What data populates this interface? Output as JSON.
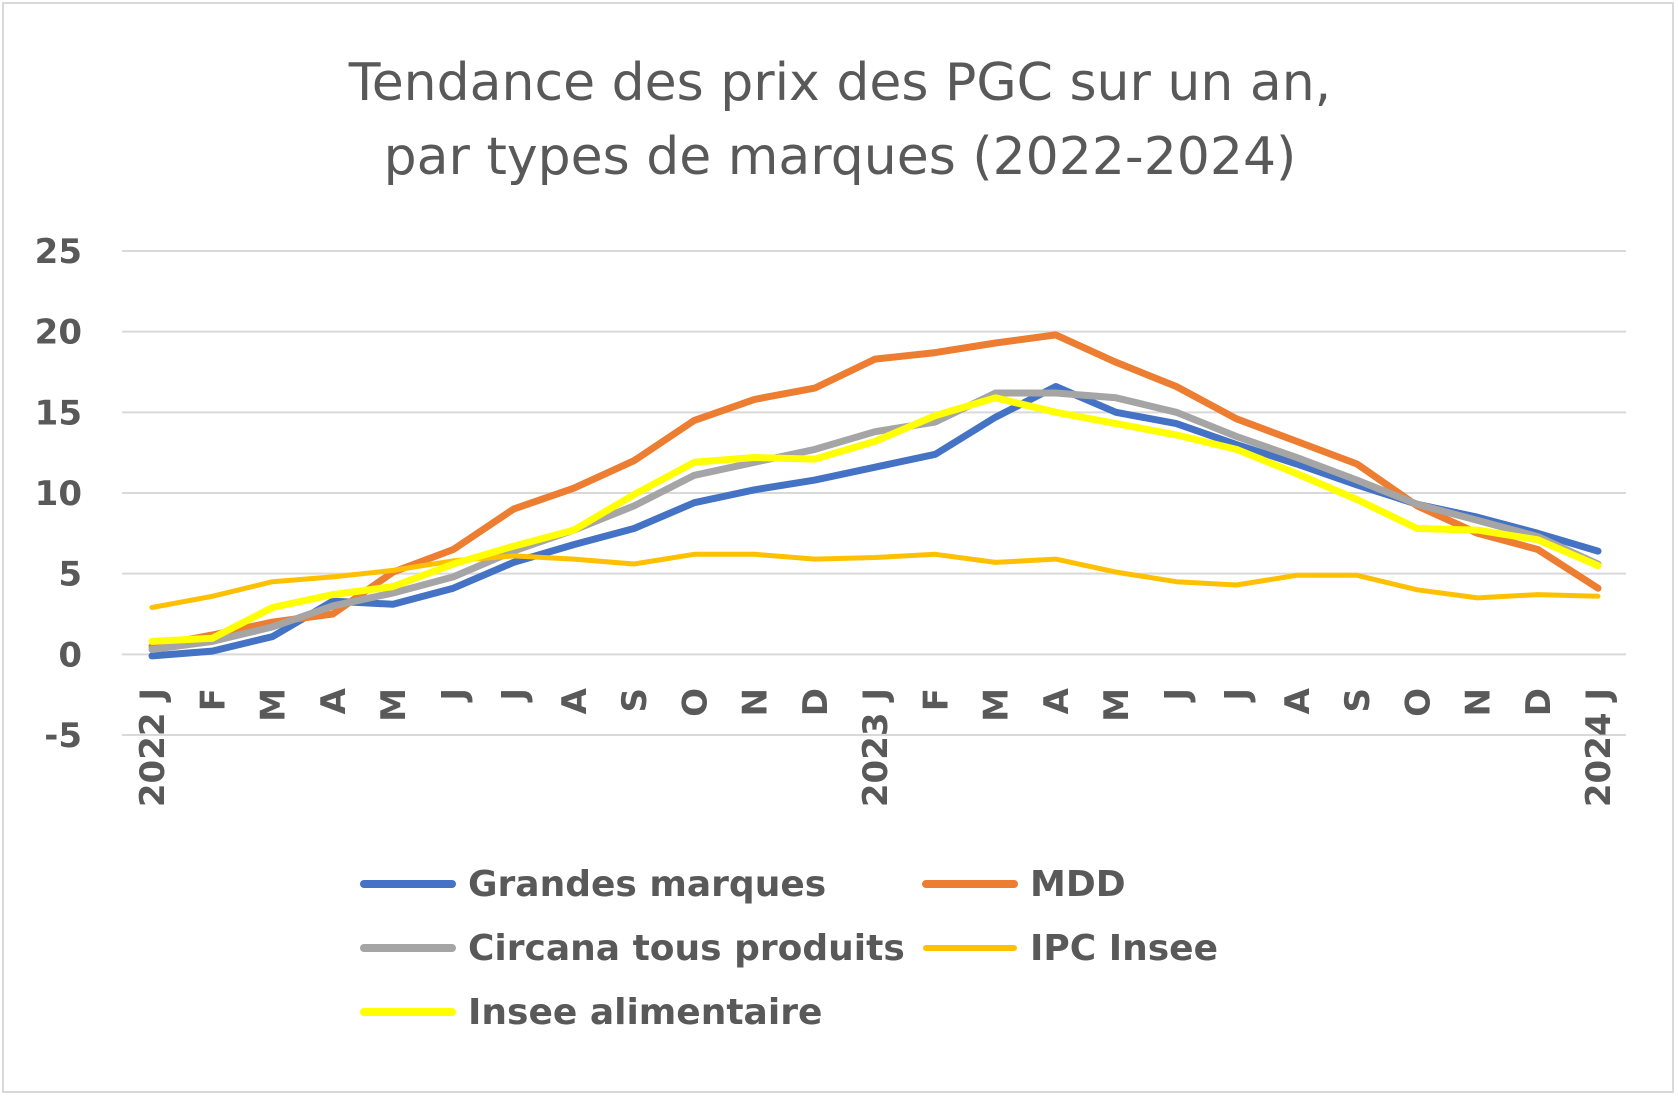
{
  "chart_data": {
    "type": "line",
    "title": "Tendance des prix des PGC sur un an,",
    "subtitle": "par types de marques (2022-2024)",
    "xlabel": "",
    "ylabel": "",
    "ylim": [
      -5,
      25
    ],
    "yticks": [
      25,
      20,
      15,
      10,
      5,
      0,
      -5
    ],
    "grid": true,
    "legend_position": "bottom",
    "categories": [
      "J",
      "F",
      "M",
      "A",
      "M",
      "J",
      "J",
      "A",
      "S",
      "O",
      "N",
      "D",
      "J",
      "F",
      "M",
      "A",
      "M",
      "J",
      "J",
      "A",
      "S",
      "O",
      "N",
      "D",
      "J"
    ],
    "year_labels": {
      "0": "2022",
      "12": "2023",
      "24": "2024"
    },
    "series": [
      {
        "name": "Grandes marques",
        "color": "#4472C4",
        "values": [
          -0.1,
          0.2,
          1.1,
          3.3,
          3.1,
          4.1,
          5.7,
          6.8,
          7.8,
          9.4,
          10.2,
          10.8,
          11.6,
          12.4,
          14.7,
          16.6,
          15.0,
          14.3,
          13.0,
          11.8,
          10.5,
          9.3,
          8.5,
          7.5,
          6.4
        ]
      },
      {
        "name": "MDD",
        "color": "#ED7D31",
        "values": [
          0.5,
          1.2,
          2.0,
          2.5,
          5.1,
          6.5,
          9.0,
          10.3,
          12.0,
          14.5,
          15.8,
          16.5,
          18.3,
          18.7,
          19.3,
          19.8,
          18.1,
          16.6,
          14.6,
          13.2,
          11.8,
          9.2,
          7.5,
          6.5,
          4.1
        ]
      },
      {
        "name": "Circana tous produits",
        "color": "#A5A5A5",
        "values": [
          0.3,
          0.8,
          1.7,
          3.0,
          3.8,
          4.8,
          6.4,
          7.7,
          9.2,
          11.1,
          11.9,
          12.7,
          13.8,
          14.4,
          16.2,
          16.2,
          15.9,
          15.0,
          13.5,
          12.2,
          10.8,
          9.3,
          8.3,
          7.3,
          5.6
        ]
      },
      {
        "name": "IPC Insee",
        "color": "#FFC000",
        "values": [
          2.9,
          3.6,
          4.5,
          4.8,
          5.2,
          5.8,
          6.1,
          5.9,
          5.6,
          6.2,
          6.2,
          5.9,
          6.0,
          6.2,
          5.7,
          5.9,
          5.1,
          4.5,
          4.3,
          4.9,
          4.9,
          4.0,
          3.5,
          3.7,
          3.6
        ]
      },
      {
        "name": "Insee alimentaire",
        "color": "#FFFF00",
        "values": [
          0.8,
          1.0,
          2.9,
          3.7,
          4.2,
          5.6,
          6.7,
          7.7,
          9.9,
          11.9,
          12.2,
          12.1,
          13.2,
          14.8,
          15.9,
          15.0,
          14.3,
          13.6,
          12.7,
          11.2,
          9.6,
          7.8,
          7.7,
          7.1,
          5.5
        ]
      }
    ]
  }
}
